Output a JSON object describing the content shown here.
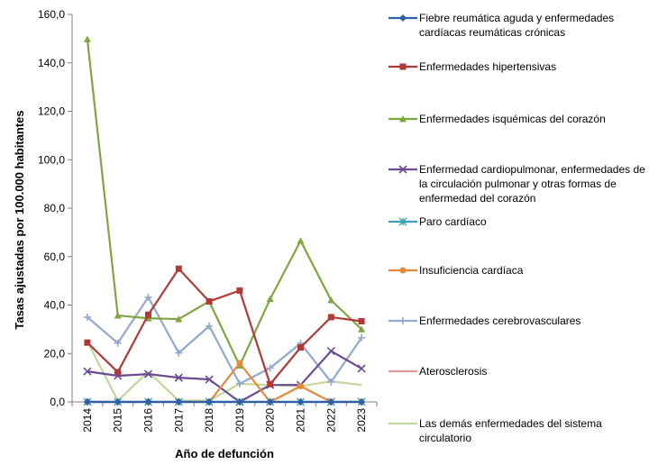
{
  "chart_data": {
    "type": "line",
    "ylabel": "Tasas ajustadas por 100.000 habitantes",
    "xlabel": "Año de defunción",
    "ylim": [
      0,
      160
    ],
    "ytick_step": 20,
    "ytick_labels": [
      "0,0",
      "20,0",
      "40,0",
      "60,0",
      "80,0",
      "100,0",
      "120,0",
      "140,0",
      "160,0"
    ],
    "categories": [
      "2014",
      "2015",
      "2016",
      "2017",
      "2018",
      "2019",
      "2020",
      "2021",
      "2022",
      "2023"
    ],
    "grid": false,
    "legend_position": "right",
    "series": [
      {
        "name": "Fiebre reumática aguda y enfermedades cardíacas reumáticas crónicas",
        "color": "#2E5FA8",
        "marker": "diamond",
        "values": [
          0,
          0,
          0,
          0,
          0,
          0,
          0,
          0,
          0,
          0
        ]
      },
      {
        "name": "Enfermedades hipertensivas",
        "color": "#B03A37",
        "marker": "square",
        "values": [
          24.5,
          12.3,
          36.0,
          55.0,
          41.5,
          46.0,
          7.3,
          22.5,
          35.0,
          33.3
        ]
      },
      {
        "name": "Enfermedades isquémicas del corazón",
        "color": "#7FA640",
        "marker": "triangle",
        "values": [
          149.8,
          35.7,
          34.5,
          34.2,
          41.5,
          15.0,
          42.5,
          66.5,
          42.0,
          30.0
        ]
      },
      {
        "name": "Enfermedad cardiopulmonar, enfermedades de la circulación pulmonar y otras formas de enfermedad del corazón",
        "color": "#6B4A93",
        "marker": "x",
        "values": [
          12.6,
          10.8,
          11.5,
          10.0,
          9.3,
          0,
          7.0,
          7.0,
          21.0,
          13.8
        ]
      },
      {
        "name": "Paro cardíaco",
        "color": "#3AA0B8",
        "marker": "asterisk",
        "values": [
          0,
          0,
          0,
          0,
          0,
          0,
          0,
          0,
          0,
          0
        ]
      },
      {
        "name": "Insuficiencia cardíaca",
        "color": "#E48A3A",
        "marker": "circle",
        "values": [
          0,
          0,
          0,
          0,
          0,
          16.0,
          0,
          6.5,
          0,
          0
        ]
      },
      {
        "name": "Enfermedades cerebrovasculares",
        "color": "#92A8CE",
        "marker": "plus",
        "values": [
          35.0,
          24.3,
          43.2,
          20.2,
          31.3,
          7.5,
          14.0,
          24.2,
          8.2,
          26.5
        ]
      },
      {
        "name": "Aterosclerosis",
        "color": "#DF9A97",
        "marker": "none",
        "values": [
          0,
          0,
          0,
          0,
          0,
          0,
          0,
          0,
          0,
          0
        ]
      },
      {
        "name": "Las demás enfermedades del sistema circulatorio",
        "color": "#C3D69B",
        "marker": "none",
        "values": [
          25.0,
          0.5,
          12.5,
          0.5,
          0.5,
          7.5,
          7.0,
          6.5,
          8.5,
          7.0
        ]
      }
    ]
  }
}
